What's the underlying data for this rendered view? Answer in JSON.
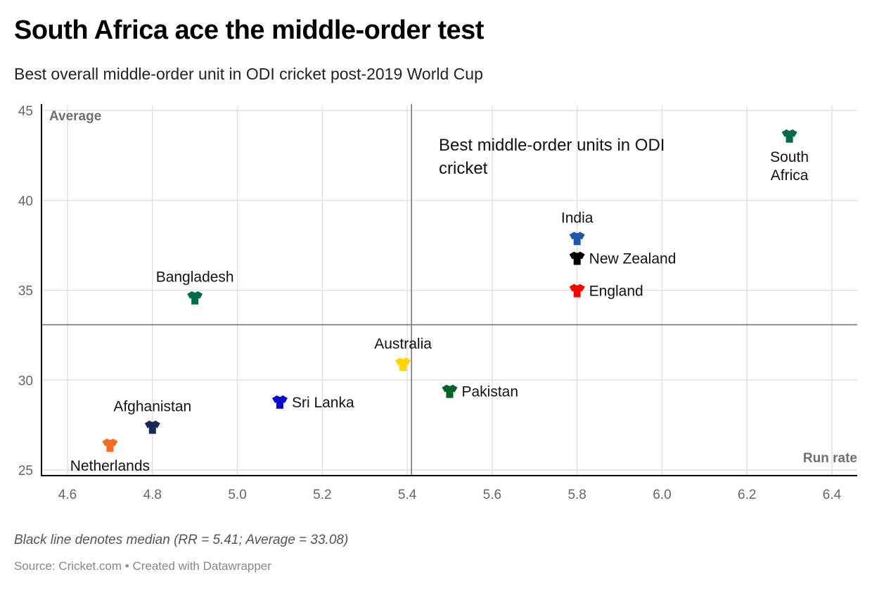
{
  "header": {
    "title": "South Africa ace the middle-order test",
    "subtitle": "Best overall middle-order unit in ODI cricket post-2019 World Cup"
  },
  "footer": {
    "notes": "Black line denotes median (RR = 5.41; Average = 33.08)",
    "source": "Source: Cricket.com • Created with Datawrapper"
  },
  "chart_data": {
    "type": "scatter",
    "title": "South Africa ace the middle-order test",
    "subtitle": "Best overall middle-order unit in ODI cricket post-2019 World Cup",
    "xlabel": "Run rate",
    "ylabel": "Average",
    "xlim": [
      4.54,
      6.46
    ],
    "ylim": [
      25,
      45
    ],
    "xticks": [
      4.6,
      4.8,
      5.0,
      5.2,
      5.4,
      5.6,
      5.8,
      6.0,
      6.2,
      6.4
    ],
    "xtick_labels": [
      "4.6",
      "4.8",
      "5.0",
      "5.2",
      "5.4",
      "5.6",
      "5.8",
      "6.0",
      "6.2",
      "6.4"
    ],
    "yticks": [
      25,
      30,
      35,
      40,
      45
    ],
    "ytick_labels": [
      "25",
      "30",
      "35",
      "40",
      "45"
    ],
    "grid": true,
    "marker": "jersey",
    "median": {
      "x": 5.41,
      "y": 33.08
    },
    "annotation": {
      "lines": [
        "Best middle-order units in ODI",
        "cricket"
      ],
      "x": 5.47,
      "y": 42.3
    },
    "points": [
      {
        "team": "South Africa",
        "x": 6.3,
        "y": 43.6,
        "color": "#006A4E",
        "label_lines": [
          "South",
          "Africa"
        ],
        "label_pos": "below"
      },
      {
        "team": "India",
        "x": 5.8,
        "y": 37.9,
        "color": "#1F56A8",
        "label_lines": [
          "India"
        ],
        "label_pos": "above"
      },
      {
        "team": "New Zealand",
        "x": 5.8,
        "y": 36.8,
        "color": "#000000",
        "label_lines": [
          "New Zealand"
        ],
        "label_pos": "right"
      },
      {
        "team": "England",
        "x": 5.8,
        "y": 35.0,
        "color": "#FF0000",
        "label_lines": [
          "England"
        ],
        "label_pos": "right"
      },
      {
        "team": "Bangladesh",
        "x": 4.9,
        "y": 34.6,
        "color": "#006A4E",
        "label_lines": [
          "Bangladesh"
        ],
        "label_pos": "above"
      },
      {
        "team": "Australia",
        "x": 5.39,
        "y": 30.9,
        "color": "#FFD500",
        "label_lines": [
          "Australia"
        ],
        "label_pos": "above"
      },
      {
        "team": "Pakistan",
        "x": 5.5,
        "y": 29.4,
        "color": "#01632A",
        "label_lines": [
          "Pakistan"
        ],
        "label_pos": "right"
      },
      {
        "team": "Sri Lanka",
        "x": 5.1,
        "y": 28.8,
        "color": "#0A0ACC",
        "label_lines": [
          "Sri Lanka"
        ],
        "label_pos": "right"
      },
      {
        "team": "Afghanistan",
        "x": 4.8,
        "y": 27.4,
        "color": "#182A5A",
        "label_lines": [
          "Afghanistan"
        ],
        "label_pos": "above"
      },
      {
        "team": "Netherlands",
        "x": 4.7,
        "y": 26.4,
        "color": "#F36C21",
        "label_lines": [
          "Netherlands"
        ],
        "label_pos": "below"
      }
    ],
    "colors": {
      "grid": "#e1e1e1",
      "axis": "#000000",
      "median": "#777777"
    }
  }
}
